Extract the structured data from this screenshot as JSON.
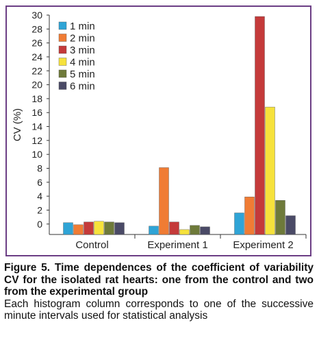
{
  "caption": {
    "title": "Figure 5. Time dependences of the coefficient of variability CV for the isolated rat hearts: one from the control and two from the experimental group",
    "body": "Each histogram column corresponds to one of the successive minute intervals used for statistical analysis"
  },
  "chart_data": {
    "type": "bar",
    "ylabel": "CV (%)",
    "xlabel": "",
    "ylim": [
      -1.5,
      30
    ],
    "yticks": [
      0,
      2,
      4,
      6,
      8,
      10,
      12,
      14,
      16,
      18,
      20,
      22,
      24,
      26,
      28,
      30
    ],
    "grid": false,
    "legend_position": "top-left",
    "categories": [
      "Control",
      "Experiment 1",
      "Experiment 2"
    ],
    "series": [
      {
        "name": "1 min",
        "color": "#2fa4d6",
        "values": [
          0.2,
          -0.3,
          1.6
        ]
      },
      {
        "name": "2 min",
        "color": "#f07c34",
        "values": [
          -0.1,
          8.1,
          3.9
        ]
      },
      {
        "name": "3 min",
        "color": "#c43a3a",
        "values": [
          0.3,
          0.3,
          29.8
        ]
      },
      {
        "name": "4 min",
        "color": "#f6e23c",
        "values": [
          0.4,
          -0.8,
          16.8
        ]
      },
      {
        "name": "5 min",
        "color": "#6e7a3a",
        "values": [
          0.3,
          -0.2,
          3.4
        ]
      },
      {
        "name": "6 min",
        "color": "#4a4a66",
        "values": [
          0.2,
          -0.4,
          1.2
        ]
      }
    ]
  }
}
